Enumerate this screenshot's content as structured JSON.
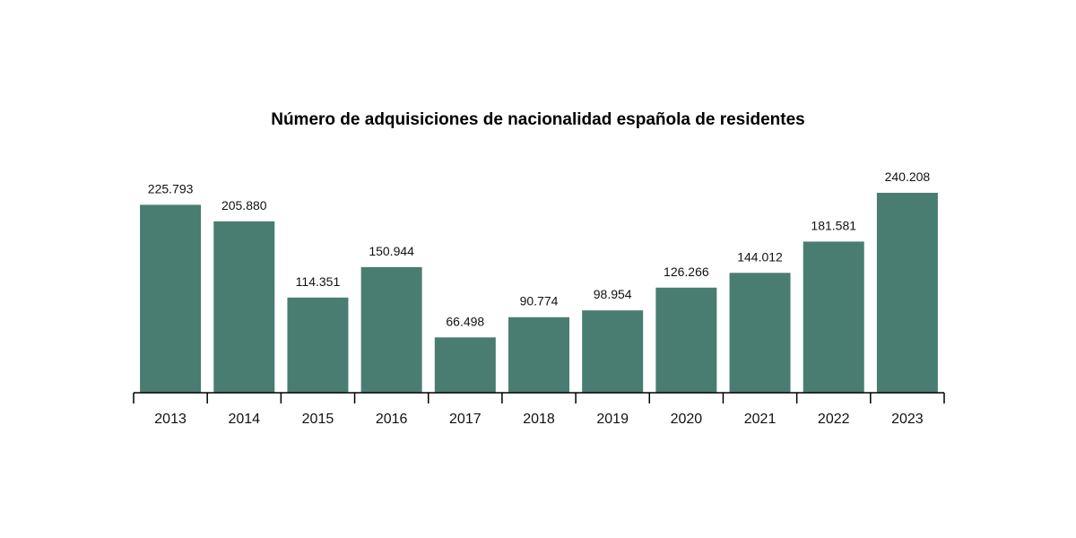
{
  "chart_data": {
    "type": "bar",
    "title": "Número de adquisiciones de nacionalidad española de residentes",
    "xlabel": "",
    "ylabel": "",
    "categories": [
      "2013",
      "2014",
      "2015",
      "2016",
      "2017",
      "2018",
      "2019",
      "2020",
      "2021",
      "2022",
      "2023"
    ],
    "values": [
      225793,
      205880,
      114351,
      150944,
      66498,
      90774,
      98954,
      126266,
      144012,
      181581,
      240208
    ],
    "value_labels": [
      "225.793",
      "205.880",
      "114.351",
      "150.944",
      "66.498",
      "90.774",
      "98.954",
      "126.266",
      "144.012",
      "181.581",
      "240.208"
    ],
    "ylim": [
      0,
      240208
    ],
    "grid": false,
    "legend": "none",
    "bar_color": "#4a7d72"
  }
}
